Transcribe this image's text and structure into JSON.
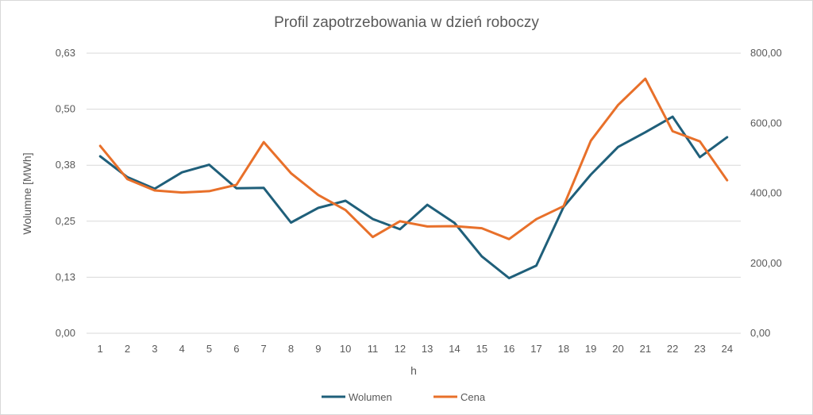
{
  "chart_data": {
    "type": "line",
    "title": "Profil zapotrzebowania w dzień roboczy",
    "xlabel": "h",
    "ylabel": "Wolumne [MWh]",
    "y2label": "",
    "categories": [
      "1",
      "2",
      "3",
      "4",
      "5",
      "6",
      "7",
      "8",
      "9",
      "10",
      "11",
      "12",
      "13",
      "14",
      "15",
      "16",
      "17",
      "18",
      "19",
      "20",
      "21",
      "22",
      "23",
      "24"
    ],
    "ylim": [
      0,
      0.63
    ],
    "y2lim": [
      0,
      800
    ],
    "yticks": [
      0,
      0.126,
      0.252,
      0.378,
      0.504,
      0.63
    ],
    "ytick_labels": [
      "0,00",
      "0,13",
      "0,25",
      "0,38",
      "0,50",
      "0,63"
    ],
    "y2ticks": [
      0,
      200,
      400,
      600,
      800
    ],
    "y2tick_labels": [
      "0,00",
      "200,00",
      "400,00",
      "600,00",
      "800,00"
    ],
    "grid": true,
    "legend_position": "bottom",
    "series": [
      {
        "name": "Wolumen",
        "axis": "left",
        "color": "#1f5f7a",
        "values": [
          0.398,
          0.351,
          0.325,
          0.362,
          0.379,
          0.326,
          0.327,
          0.249,
          0.282,
          0.298,
          0.257,
          0.234,
          0.289,
          0.248,
          0.173,
          0.124,
          0.152,
          0.284,
          0.357,
          0.419,
          0.452,
          0.487,
          0.396,
          0.441
        ]
      },
      {
        "name": "Cena",
        "axis": "right",
        "color": "#e8702a",
        "values": [
          535,
          440,
          408,
          402,
          406,
          424,
          546,
          457,
          395,
          352,
          275,
          320,
          305,
          306,
          300,
          269,
          326,
          363,
          550,
          652,
          727,
          577,
          548,
          437
        ]
      }
    ]
  }
}
